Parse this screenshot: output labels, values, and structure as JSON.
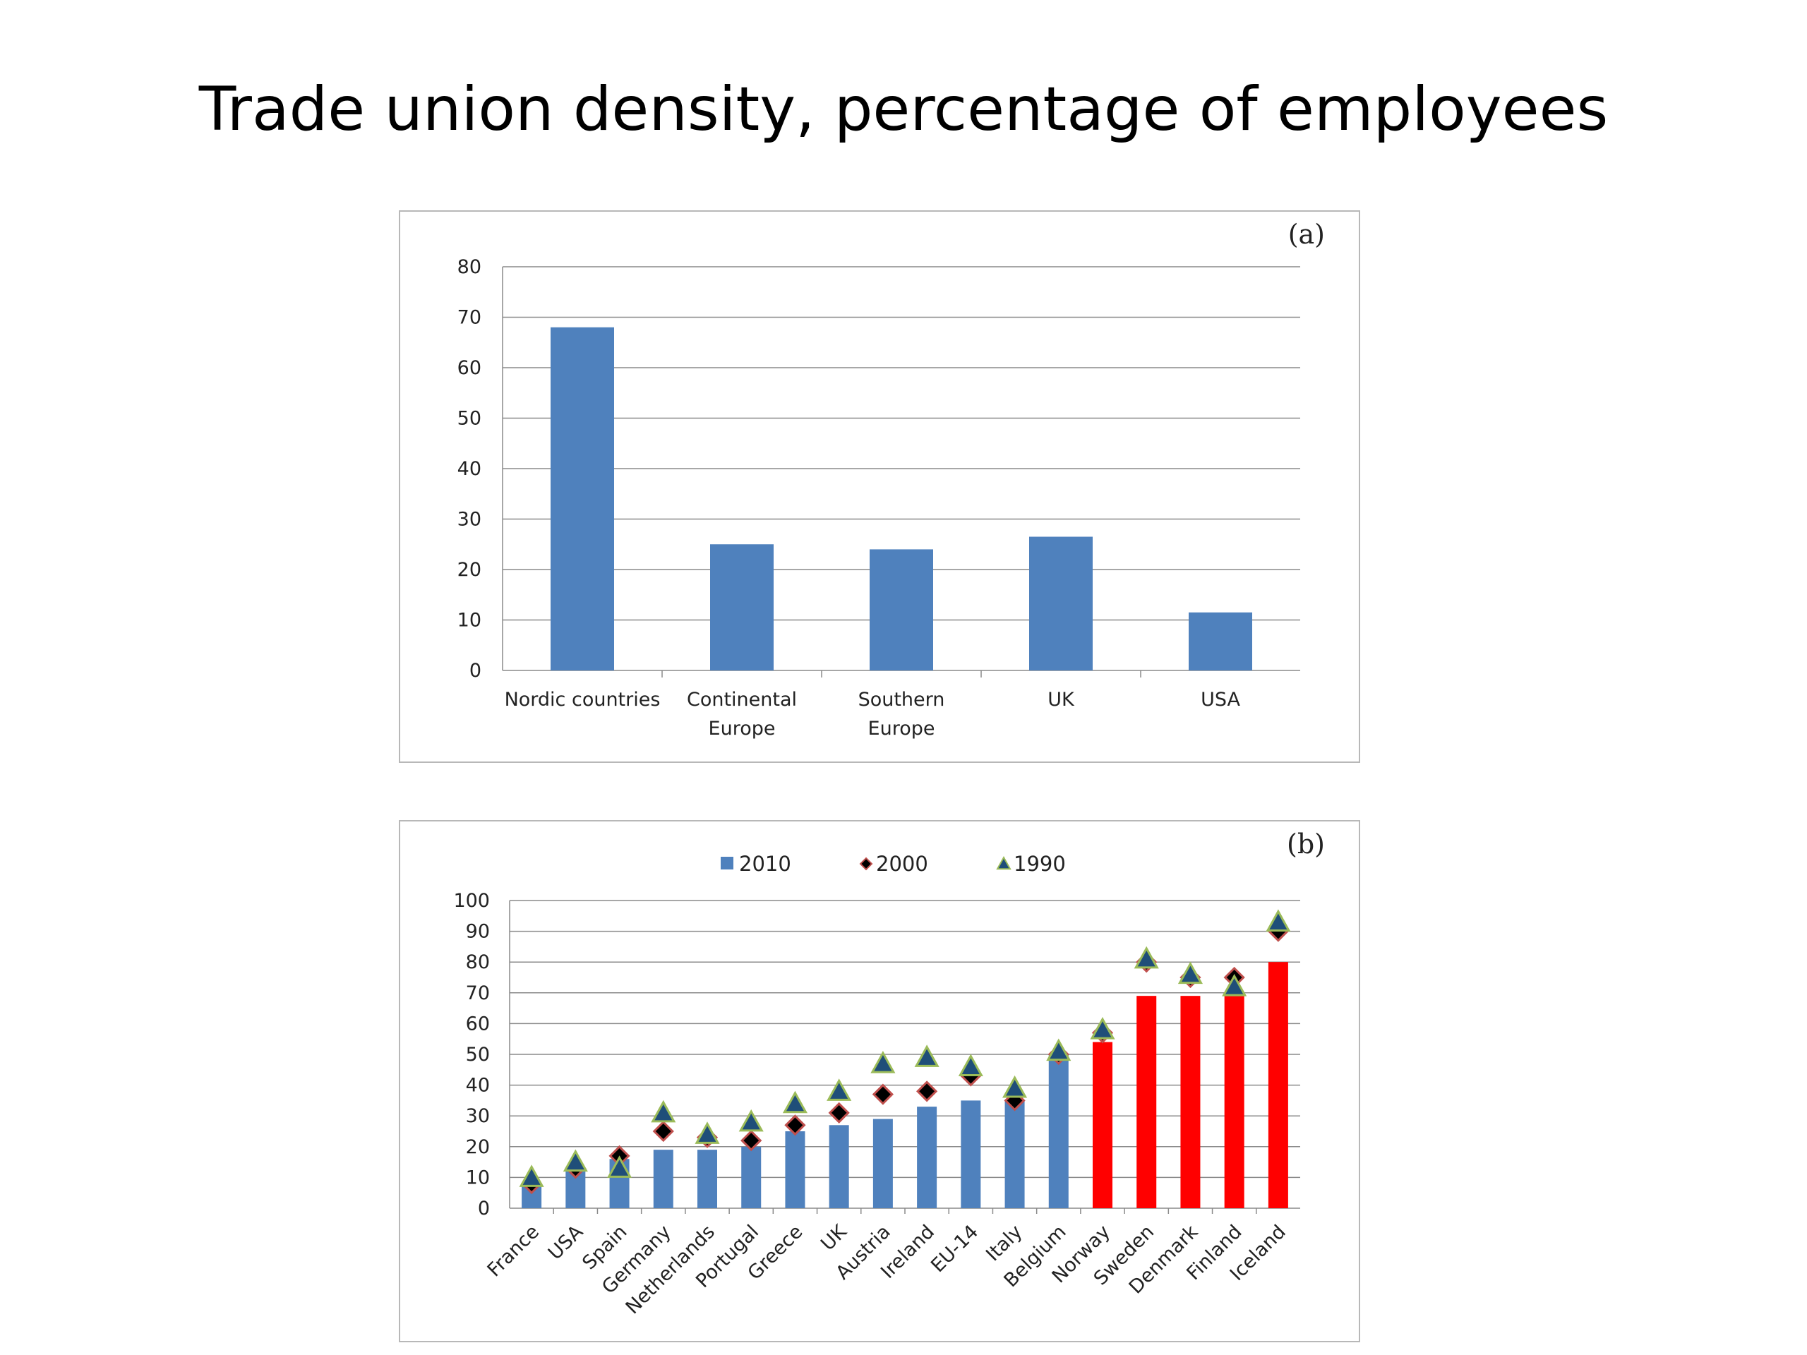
{
  "slide": {
    "title": "Trade union density, percentage of employees"
  },
  "chart_data": [
    {
      "type": "bar",
      "panel_label": "(a)",
      "categories": [
        [
          "Nordic countries"
        ],
        [
          "Continental",
          "Europe"
        ],
        [
          "Southern",
          "Europe"
        ],
        [
          "UK"
        ],
        [
          "USA"
        ]
      ],
      "values": [
        68,
        25,
        24,
        26.5,
        11.5
      ],
      "ylim": [
        0,
        80
      ],
      "yticks": [
        0,
        10,
        20,
        30,
        40,
        50,
        60,
        70,
        80
      ],
      "grid": true,
      "colors": {
        "bar": "#4f81bd"
      }
    },
    {
      "type": "bar",
      "panel_label": "(b)",
      "categories": [
        "France",
        "USA",
        "Spain",
        "Germany",
        "Netherlands",
        "Portugal",
        "Greece",
        "UK",
        "Austria",
        "Ireland",
        "EU-14",
        "Italy",
        "Belgium",
        "Norway",
        "Sweden",
        "Denmark",
        "Finland",
        "Iceland"
      ],
      "ylim": [
        0,
        100
      ],
      "yticks": [
        0,
        10,
        20,
        30,
        40,
        50,
        60,
        70,
        80,
        90,
        100
      ],
      "grid": true,
      "legend_position": "top-center",
      "series": [
        {
          "name": "2010",
          "kind": "bar",
          "values": [
            8,
            12,
            16,
            19,
            19,
            20,
            25,
            27,
            29,
            33,
            35,
            35,
            50,
            54,
            69,
            69,
            70,
            80
          ]
        },
        {
          "name": "2000",
          "kind": "diamond",
          "values": [
            8,
            13,
            17,
            25,
            23,
            22,
            27,
            31,
            37,
            38,
            43,
            35,
            50,
            57,
            80,
            75,
            75,
            90
          ]
        },
        {
          "name": "1990",
          "kind": "triangle",
          "values": [
            10,
            15,
            13,
            31,
            24,
            28,
            34,
            38,
            47,
            49,
            46,
            39,
            51,
            58,
            81,
            76,
            72,
            93
          ]
        }
      ],
      "colors": {
        "bar": "#4f81bd",
        "highlight_bar": "#ff0000",
        "diamond_fill": "#000000",
        "diamond_edge": "#c0504d",
        "triangle_fill": "#1f4e79",
        "triangle_edge": "#9bbb59"
      },
      "highlight_categories": [
        "Norway",
        "Sweden",
        "Denmark",
        "Finland",
        "Iceland"
      ]
    }
  ]
}
